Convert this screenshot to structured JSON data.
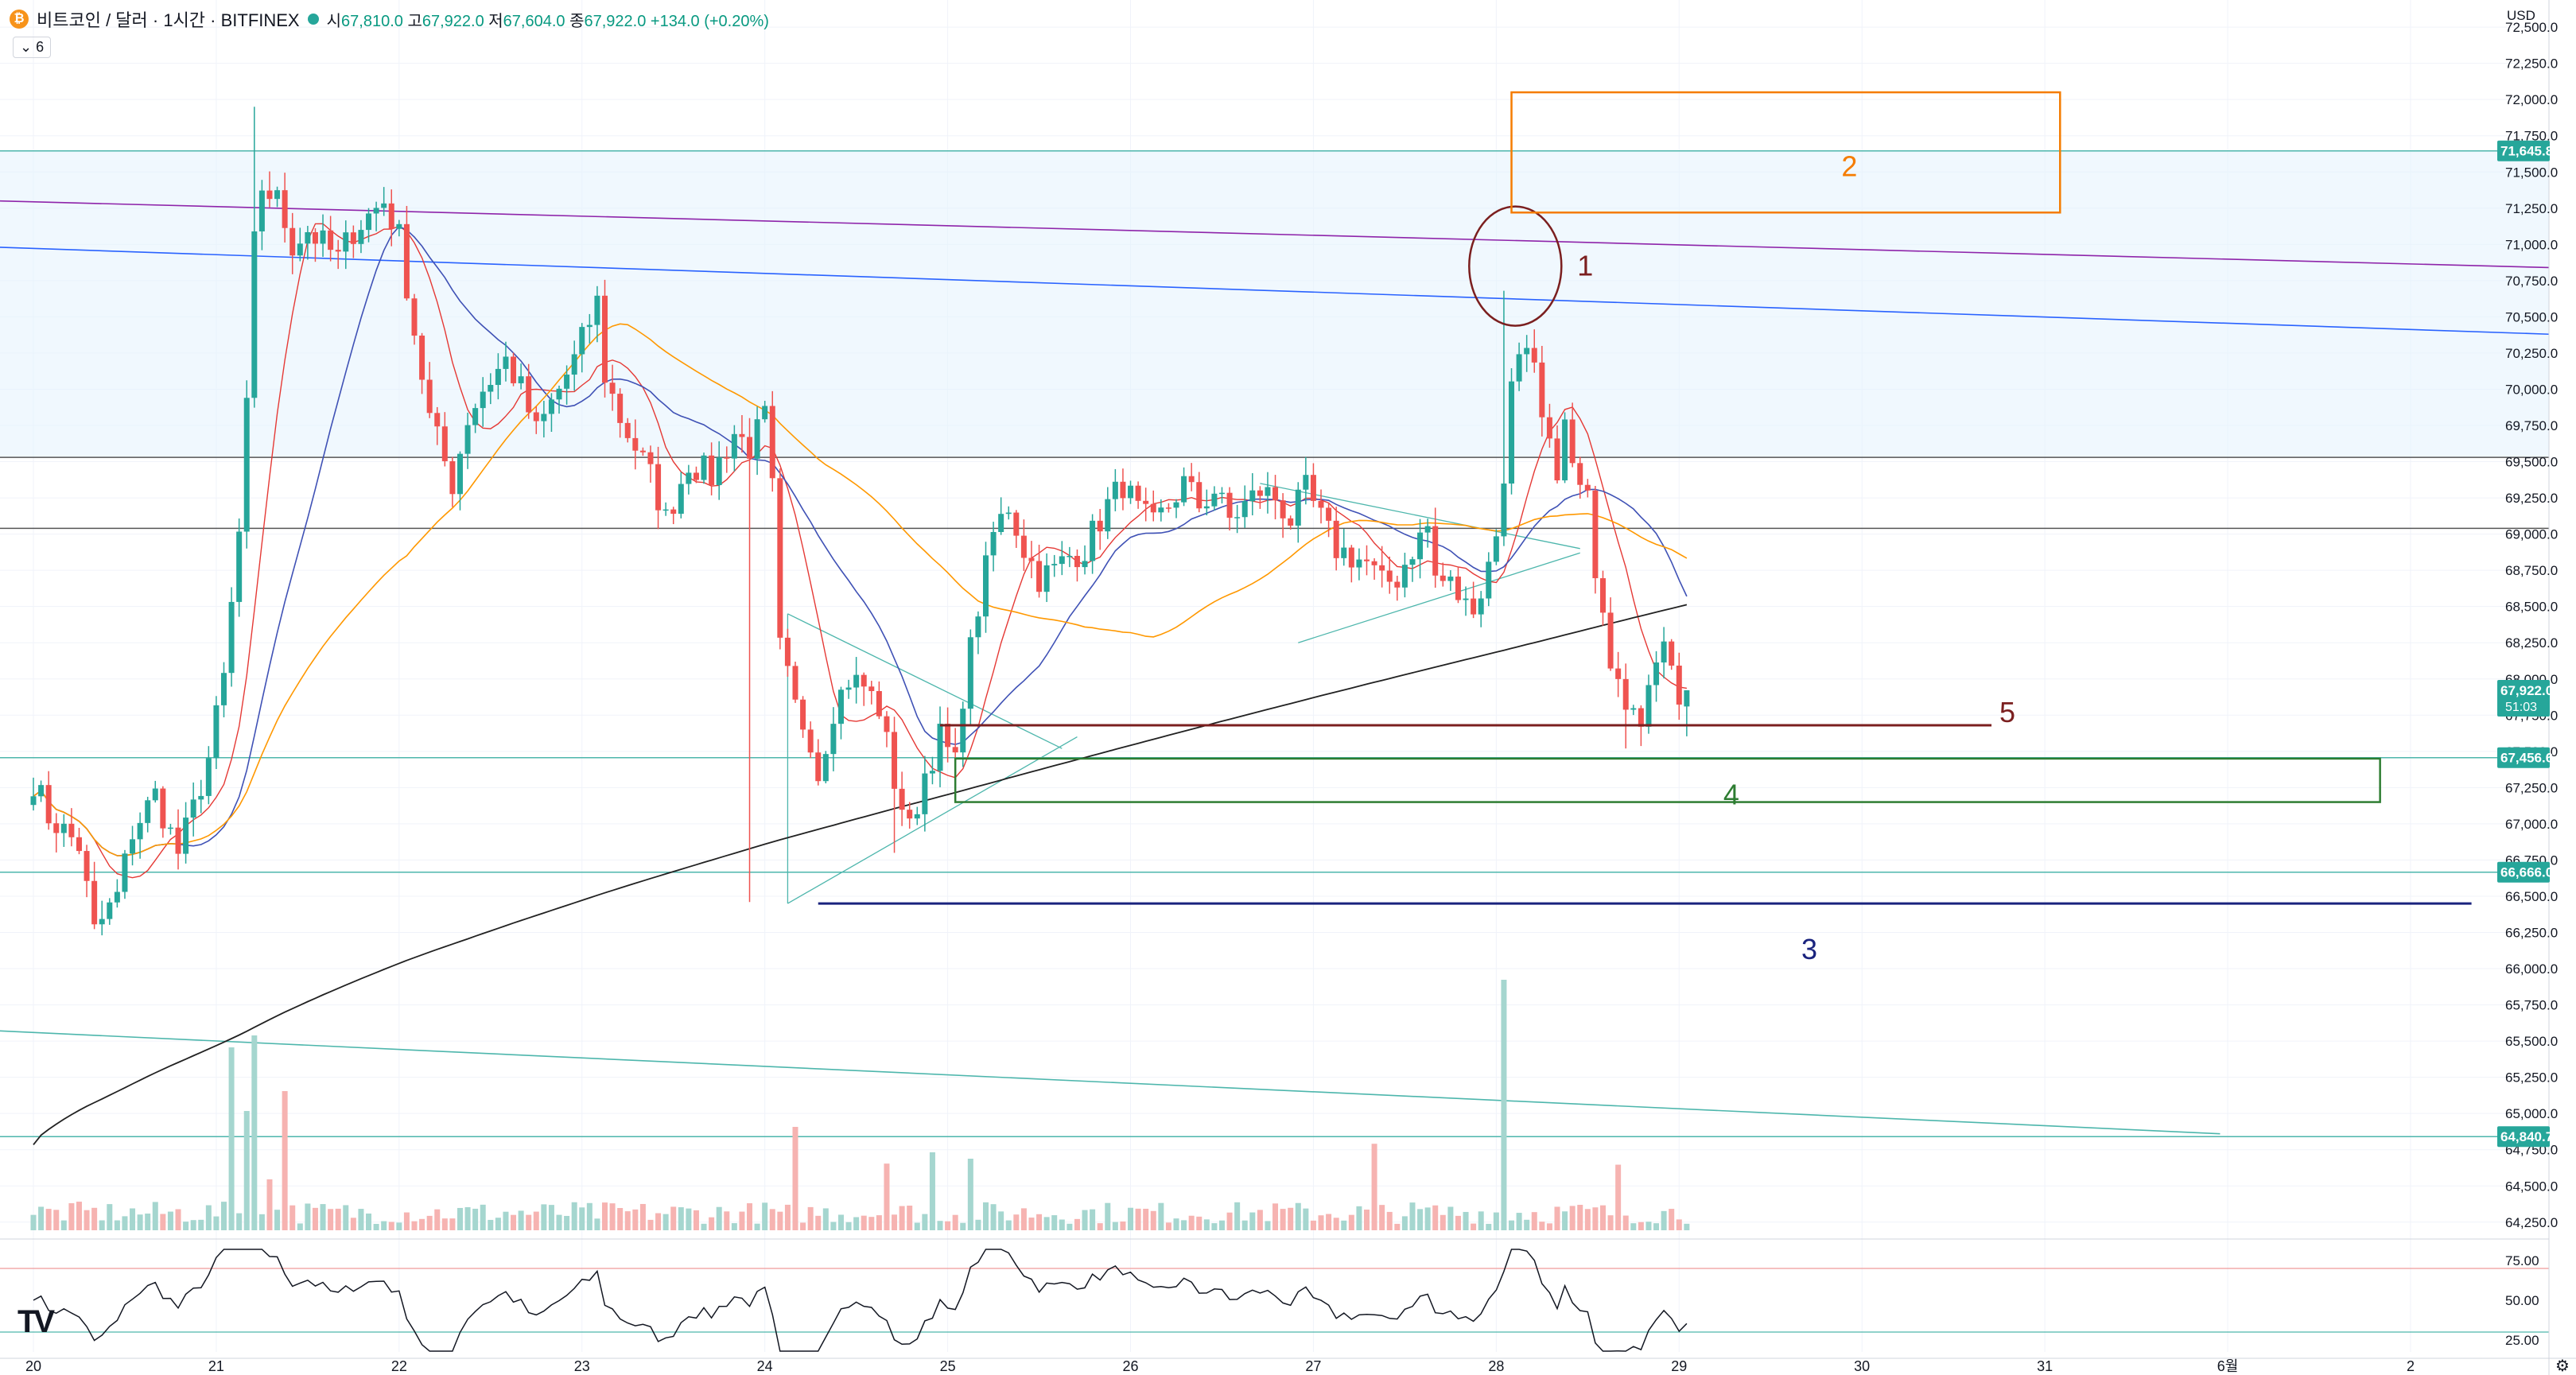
{
  "header": {
    "coin_icon": "bitcoin-icon",
    "symbol_title": "비트코인 / 달러 · 1시간 · BITFINEX",
    "open_label": "시",
    "open": "67,810.0",
    "high_label": "고",
    "high": "67,922.0",
    "low_label": "저",
    "low": "67,604.0",
    "close_label": "종",
    "close": "67,922.0",
    "change": "+134.0 (+0.20%)",
    "indicator_toggle": "6",
    "currency": "USD"
  },
  "colors": {
    "up": "#26a69a",
    "down": "#ef5350",
    "ma_fast": "#e53935",
    "ma_mid": "#3f51b5",
    "ma_slow": "#ff9800",
    "ma_long": "#212121",
    "box_orange": "#f57c00",
    "box_green": "#2e7d32",
    "line_dark_red": "#7b1f1f",
    "line_navy": "#1a237e"
  },
  "chart_data": {
    "type": "candlestick",
    "symbol": "BTC/USD",
    "interval": "1h",
    "ylim": [
      64150,
      72550
    ],
    "y_ticks": [
      64250,
      64500,
      64750,
      65000,
      65250,
      65500,
      65750,
      66000,
      66250,
      66500,
      66750,
      67000,
      67250,
      67500,
      67750,
      68000,
      68250,
      68500,
      68750,
      69000,
      69250,
      69500,
      69750,
      70000,
      70250,
      70500,
      70750,
      71000,
      71250,
      71500,
      71750,
      72000,
      72250,
      72500
    ],
    "y_tick_labels": [
      "64,250.0",
      "64,500.0",
      "64,750.0",
      "65,000.0",
      "65,250.0",
      "65,500.0",
      "65,750.0",
      "66,000.0",
      "66,250.0",
      "66,500.0",
      "66,750.0",
      "67,000.0",
      "67,250.0",
      "67,500.0",
      "67,750.0",
      "68,000.0",
      "68,250.0",
      "68,500.0",
      "68,750.0",
      "69,000.0",
      "69,250.0",
      "69,500.0",
      "69,750.0",
      "70,000.0",
      "70,250.0",
      "70,500.0",
      "70,750.0",
      "71,000.0",
      "71,250.0",
      "71,500.0",
      "71,750.0",
      "72,000.0",
      "72,250.0",
      "72,500.0"
    ],
    "x_ticks": [
      {
        "x": 0,
        "label": "20"
      },
      {
        "x": 24,
        "label": "21"
      },
      {
        "x": 48,
        "label": "22"
      },
      {
        "x": 72,
        "label": "23"
      },
      {
        "x": 96,
        "label": "24"
      },
      {
        "x": 120,
        "label": "25"
      },
      {
        "x": 144,
        "label": "26"
      },
      {
        "x": 168,
        "label": "27"
      },
      {
        "x": 192,
        "label": "28"
      },
      {
        "x": 216,
        "label": "29"
      },
      {
        "x": 240,
        "label": "30"
      },
      {
        "x": 264,
        "label": "31"
      },
      {
        "x": 288,
        "label": "6월"
      },
      {
        "x": 312,
        "label": "2"
      }
    ],
    "anchors": [
      [
        0,
        67300
      ],
      [
        2,
        67050
      ],
      [
        4,
        66950
      ],
      [
        6,
        66850
      ],
      [
        8,
        66250
      ],
      [
        11,
        66500
      ],
      [
        13,
        66950
      ],
      [
        16,
        67200
      ],
      [
        19,
        66800
      ],
      [
        21,
        67100
      ],
      [
        23,
        67450
      ],
      [
        25,
        68000
      ],
      [
        27,
        69000
      ],
      [
        28,
        69850
      ],
      [
        29,
        71000
      ],
      [
        30,
        71400
      ],
      [
        32,
        71300
      ],
      [
        34,
        71000
      ],
      [
        36,
        71100
      ],
      [
        38,
        71000
      ],
      [
        40,
        70900
      ],
      [
        42,
        71100
      ],
      [
        46,
        71300
      ],
      [
        48,
        71050
      ],
      [
        50,
        70400
      ],
      [
        52,
        69800
      ],
      [
        54,
        69500
      ],
      [
        55,
        69350
      ],
      [
        57,
        69800
      ],
      [
        59,
        70000
      ],
      [
        62,
        70200
      ],
      [
        64,
        70000
      ],
      [
        66,
        69700
      ],
      [
        69,
        70000
      ],
      [
        71,
        70200
      ],
      [
        74,
        70600
      ],
      [
        75,
        70100
      ],
      [
        77,
        69800
      ],
      [
        79,
        69600
      ],
      [
        81,
        69400
      ],
      [
        83,
        69100
      ],
      [
        86,
        69500
      ],
      [
        89,
        69400
      ],
      [
        92,
        69700
      ],
      [
        94,
        69600
      ],
      [
        96,
        69800
      ],
      [
        97,
        69300
      ],
      [
        98,
        68200
      ],
      [
        100,
        67800
      ],
      [
        102,
        67600
      ],
      [
        103,
        67350
      ],
      [
        105,
        67800
      ],
      [
        107,
        68000
      ],
      [
        109,
        67950
      ],
      [
        111,
        67800
      ],
      [
        113,
        67300
      ],
      [
        115,
        66950
      ],
      [
        117,
        67350
      ],
      [
        119,
        67600
      ],
      [
        121,
        67400
      ],
      [
        122,
        67900
      ],
      [
        124,
        68500
      ],
      [
        126,
        69000
      ],
      [
        128,
        69200
      ],
      [
        130,
        68900
      ],
      [
        132,
        68700
      ],
      [
        134,
        68750
      ],
      [
        136,
        68850
      ],
      [
        138,
        68900
      ],
      [
        141,
        69200
      ],
      [
        143,
        69350
      ],
      [
        145,
        69150
      ],
      [
        147,
        69050
      ],
      [
        149,
        69200
      ],
      [
        151,
        69350
      ],
      [
        153,
        69200
      ],
      [
        155,
        69300
      ],
      [
        157,
        69100
      ],
      [
        159,
        69200
      ],
      [
        161,
        69300
      ],
      [
        163,
        69250
      ],
      [
        165,
        69100
      ],
      [
        167,
        69300
      ],
      [
        169,
        69100
      ],
      [
        171,
        68900
      ],
      [
        173,
        68850
      ],
      [
        175,
        68800
      ],
      [
        177,
        68650
      ],
      [
        179,
        68700
      ],
      [
        181,
        68900
      ],
      [
        183,
        69050
      ],
      [
        184,
        68700
      ],
      [
        186,
        68650
      ],
      [
        188,
        68500
      ],
      [
        190,
        68600
      ],
      [
        191,
        68800
      ],
      [
        193,
        69300
      ],
      [
        194,
        70100
      ],
      [
        195,
        70300
      ],
      [
        197,
        70200
      ],
      [
        198,
        69900
      ],
      [
        199,
        69600
      ],
      [
        200,
        69300
      ],
      [
        201,
        69700
      ],
      [
        202,
        69400
      ],
      [
        204,
        69200
      ],
      [
        205,
        68800
      ],
      [
        206,
        68400
      ],
      [
        207,
        68050
      ],
      [
        208,
        67950
      ],
      [
        209,
        67700
      ],
      [
        210,
        67900
      ],
      [
        211,
        67750
      ],
      [
        212,
        68050
      ],
      [
        214,
        68350
      ],
      [
        215,
        68200
      ],
      [
        216,
        67800
      ],
      [
        217,
        67922
      ]
    ],
    "last_candle": {
      "open": 67810.0,
      "high": 67922.0,
      "low": 67604.0,
      "close": 67922.0
    },
    "moving_averages": [
      {
        "period": 9,
        "color": "#e53935"
      },
      {
        "period": 20,
        "color": "#3f51b5"
      },
      {
        "period": 50,
        "color": "#ff9800"
      },
      {
        "period": 200,
        "color": "#212121"
      }
    ],
    "price_tags": [
      {
        "value": 71645.8,
        "label": "71,645.8",
        "color": "#26a69a"
      },
      {
        "value": 67922.0,
        "label": "67,922.0",
        "sub": "51:03",
        "color": "#26a69a"
      },
      {
        "value": 67456.6,
        "label": "67,456.6",
        "color": "#26a69a"
      },
      {
        "value": 66666.0,
        "label": "66,666.0",
        "color": "#26a69a"
      },
      {
        "value": 64840.7,
        "label": "64,840.7",
        "color": "#26a69a"
      }
    ],
    "horizontal_lines": [
      {
        "value": 71645.8,
        "color": "#4db6ac"
      },
      {
        "value": 69530,
        "color": "#555555"
      },
      {
        "value": 69040,
        "color": "#555555"
      },
      {
        "value": 67456.6,
        "color": "#4db6ac"
      },
      {
        "value": 66666.0,
        "color": "#4db6ac"
      },
      {
        "value": 64840.7,
        "color": "#4db6ac"
      }
    ],
    "annotations": [
      {
        "label": "1",
        "kind": "circle",
        "x": 194.5,
        "y": 70850,
        "color": "#7b1f1f"
      },
      {
        "label": "2",
        "kind": "box",
        "x1": 194,
        "x2": 266,
        "y1": 71220,
        "y2": 72050,
        "color": "#f57c00"
      },
      {
        "label": "3",
        "kind": "hline",
        "x1": 103,
        "x2": 320,
        "y": 66450,
        "color": "#1a237e"
      },
      {
        "label": "4",
        "kind": "box",
        "x1": 121,
        "x2": 308,
        "y1": 67150,
        "y2": 67450,
        "color": "#2e7d32"
      },
      {
        "label": "5",
        "kind": "hline",
        "x1": 119,
        "x2": 257,
        "y": 67680,
        "color": "#7b1f1f"
      }
    ],
    "rsi": {
      "levels": [
        70,
        30
      ],
      "tick_labels": [
        "75.00",
        "50.00",
        "25.00"
      ],
      "ticks": [
        75,
        50,
        25
      ]
    }
  }
}
